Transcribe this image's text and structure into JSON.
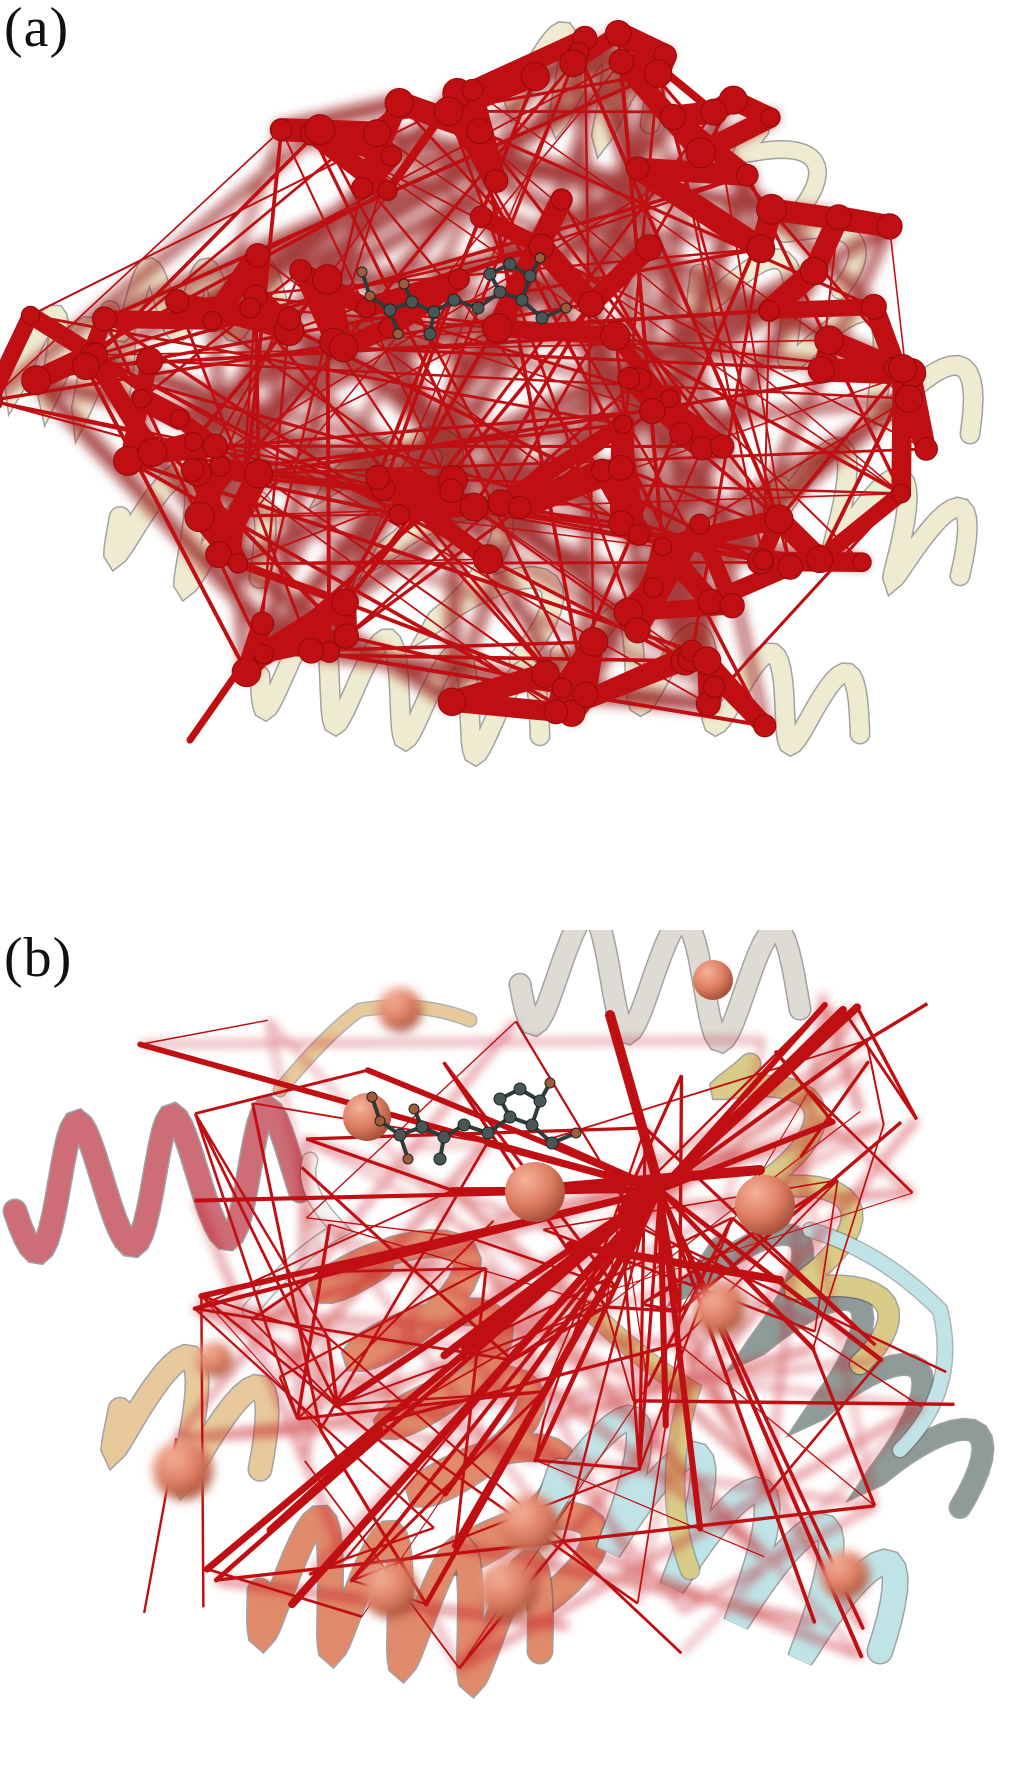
{
  "panels": [
    {
      "label": "(a)"
    },
    {
      "label": "(b)"
    }
  ],
  "colors": {
    "edge": "#c00f12",
    "edge_dark": "#8f0a0c",
    "ribbon_cream": "#efebd0",
    "ribbon_salmon": "#e08a6c",
    "ribbon_rose": "#cc6d78",
    "ribbon_cyan": "#bfe3e6",
    "ribbon_khaki": "#d8cc88",
    "ribbon_grey": "#8f9b98",
    "ribbon_tan": "#e7c99c",
    "node": "#e0846a",
    "ligand": "#4a5656"
  }
}
